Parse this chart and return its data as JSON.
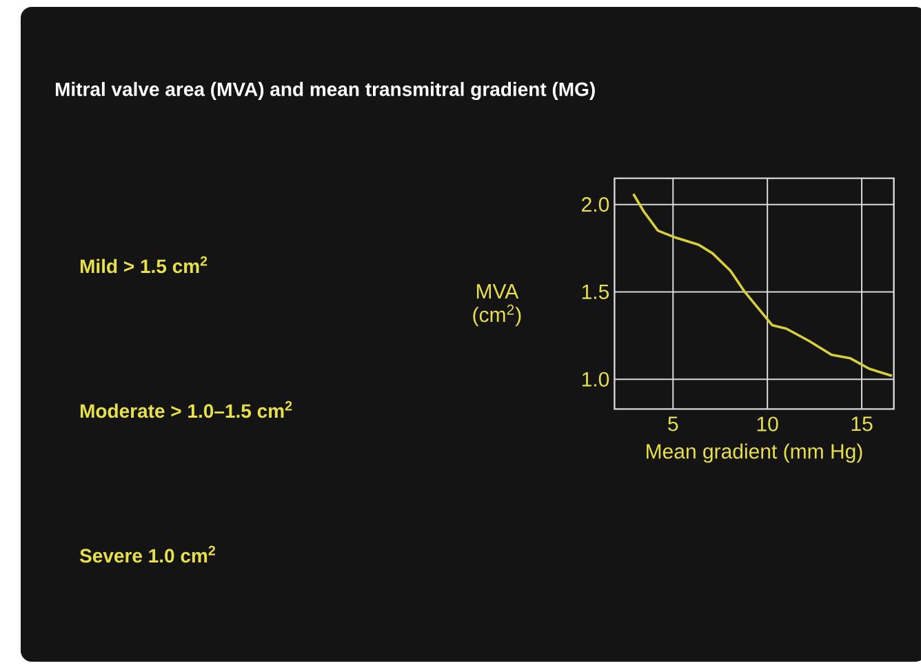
{
  "chart_data": {
    "type": "line",
    "title": "Mitral valve area (MVA) and mean transmitral gradient (MG)",
    "xlabel": "Mean gradient (mm Hg)",
    "ylabel": "MVA (cm$^{2}$)",
    "x": [
      2.9,
      3.45,
      4.2,
      5.15,
      6.35,
      7.1,
      8.05,
      8.8,
      10.25,
      11.0,
      12.2,
      13.4,
      14.4,
      15.4,
      16.6
    ],
    "values": [
      2.06,
      1.96,
      1.85,
      1.81,
      1.77,
      1.72,
      1.62,
      1.5,
      1.31,
      1.29,
      1.22,
      1.14,
      1.12,
      1.06,
      1.02
    ],
    "color": "#d8cf3c",
    "xlim": [
      1.9,
      16.7
    ],
    "ylim": [
      0.83,
      2.15
    ],
    "xticks": [
      5,
      10,
      15
    ],
    "yticks": [
      {
        "value": 1.0,
        "label": "1.0"
      },
      {
        "value": 1.5,
        "label": "1.5"
      },
      {
        "value": 2.0,
        "label": "2.0"
      }
    ],
    "grid": true,
    "annotations": [
      "Mild > 1.5 cm$^{2}$",
      "Moderate > 1.0–1.5 cm$^{2}$",
      "Severe   1.0 cm$^{2}$"
    ]
  }
}
